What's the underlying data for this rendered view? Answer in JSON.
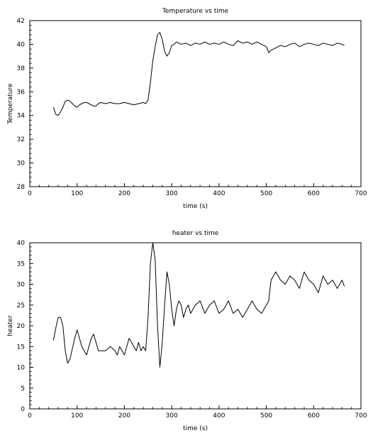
{
  "chart_data": [
    {
      "type": "line",
      "title": "Temperature vs time",
      "xlabel": "time (s)",
      "ylabel": "Temperature",
      "xlim": [
        0,
        700
      ],
      "ylim": [
        28,
        42
      ],
      "xticks": [
        "0",
        "100",
        "200",
        "300",
        "400",
        "500",
        "600",
        "700"
      ],
      "yticks": [
        "28",
        "30",
        "32",
        "34",
        "36",
        "38",
        "40",
        "42"
      ],
      "grid": false,
      "series": [
        {
          "color": "#000000",
          "x": [
            50,
            55,
            60,
            65,
            70,
            75,
            80,
            85,
            90,
            95,
            100,
            105,
            110,
            115,
            120,
            125,
            130,
            135,
            140,
            145,
            150,
            160,
            170,
            180,
            190,
            200,
            210,
            220,
            230,
            240,
            245,
            250,
            255,
            260,
            265,
            270,
            275,
            280,
            285,
            290,
            295,
            300,
            305,
            310,
            320,
            330,
            340,
            350,
            360,
            370,
            380,
            390,
            400,
            410,
            420,
            430,
            440,
            450,
            460,
            470,
            480,
            490,
            500,
            505,
            510,
            520,
            530,
            540,
            550,
            560,
            570,
            580,
            590,
            600,
            610,
            620,
            630,
            640,
            650,
            660,
            665
          ],
          "values": [
            34.7,
            34.1,
            34.0,
            34.3,
            34.7,
            35.2,
            35.3,
            35.2,
            35.0,
            34.8,
            34.7,
            34.9,
            35.0,
            35.1,
            35.1,
            35.0,
            34.9,
            34.8,
            34.8,
            35.0,
            35.1,
            35.0,
            35.1,
            35.0,
            35.0,
            35.1,
            35.0,
            34.9,
            35.0,
            35.1,
            35.0,
            35.3,
            36.8,
            38.6,
            39.8,
            40.8,
            41.0,
            40.4,
            39.4,
            39.0,
            39.3,
            39.9,
            40.0,
            40.2,
            40.0,
            40.1,
            39.9,
            40.1,
            40.0,
            40.2,
            40.0,
            40.1,
            40.0,
            40.2,
            40.0,
            39.9,
            40.3,
            40.1,
            40.2,
            40.0,
            40.2,
            40.0,
            39.8,
            39.3,
            39.5,
            39.7,
            39.9,
            39.8,
            40.0,
            40.1,
            39.8,
            40.0,
            40.1,
            40.0,
            39.9,
            40.1,
            40.0,
            39.9,
            40.1,
            40.0,
            39.9
          ]
        }
      ]
    },
    {
      "type": "line",
      "title": "heater vs time",
      "xlabel": "time (s)",
      "ylabel": "heater",
      "xlim": [
        0,
        700
      ],
      "ylim": [
        0,
        40
      ],
      "xticks": [
        "0",
        "100",
        "200",
        "300",
        "400",
        "500",
        "600",
        "700"
      ],
      "yticks": [
        "0",
        "5",
        "10",
        "15",
        "20",
        "25",
        "30",
        "35",
        "40"
      ],
      "grid": false,
      "series": [
        {
          "color": "#000000",
          "x": [
            50,
            55,
            60,
            65,
            70,
            75,
            80,
            85,
            90,
            95,
            100,
            105,
            110,
            115,
            120,
            125,
            130,
            135,
            140,
            145,
            150,
            160,
            170,
            180,
            185,
            190,
            195,
            200,
            205,
            210,
            215,
            220,
            225,
            230,
            235,
            240,
            245,
            250,
            255,
            260,
            265,
            270,
            275,
            280,
            285,
            290,
            295,
            300,
            305,
            310,
            315,
            320,
            325,
            330,
            335,
            340,
            350,
            360,
            370,
            380,
            390,
            400,
            410,
            420,
            430,
            440,
            450,
            460,
            470,
            480,
            490,
            500,
            505,
            510,
            520,
            530,
            540,
            550,
            560,
            570,
            580,
            590,
            600,
            610,
            620,
            630,
            640,
            650,
            660,
            665
          ],
          "values": [
            16.5,
            19.5,
            22.0,
            22.0,
            20.0,
            14.0,
            11.0,
            12.0,
            14.5,
            17.0,
            19.0,
            17.0,
            15.0,
            14.0,
            13.0,
            15.0,
            17.0,
            18.0,
            16.0,
            14.0,
            14.0,
            14.0,
            15.0,
            14.0,
            13.0,
            15.0,
            14.0,
            13.0,
            15.0,
            17.0,
            16.0,
            15.0,
            14.0,
            16.0,
            14.0,
            15.0,
            14.0,
            22.0,
            35.0,
            40.0,
            36.0,
            20.0,
            10.0,
            16.0,
            25.0,
            33.0,
            30.0,
            24.0,
            20.0,
            24.0,
            26.0,
            25.0,
            22.0,
            24.0,
            25.0,
            23.0,
            25.0,
            26.0,
            23.0,
            25.0,
            26.0,
            23.0,
            24.0,
            26.0,
            23.0,
            24.0,
            22.0,
            24.0,
            26.0,
            24.0,
            23.0,
            25.0,
            26.0,
            31.0,
            33.0,
            31.0,
            30.0,
            32.0,
            31.0,
            29.0,
            33.0,
            31.0,
            30.0,
            28.0,
            32.0,
            30.0,
            31.0,
            29.0,
            31.0,
            29.5
          ]
        }
      ]
    }
  ]
}
